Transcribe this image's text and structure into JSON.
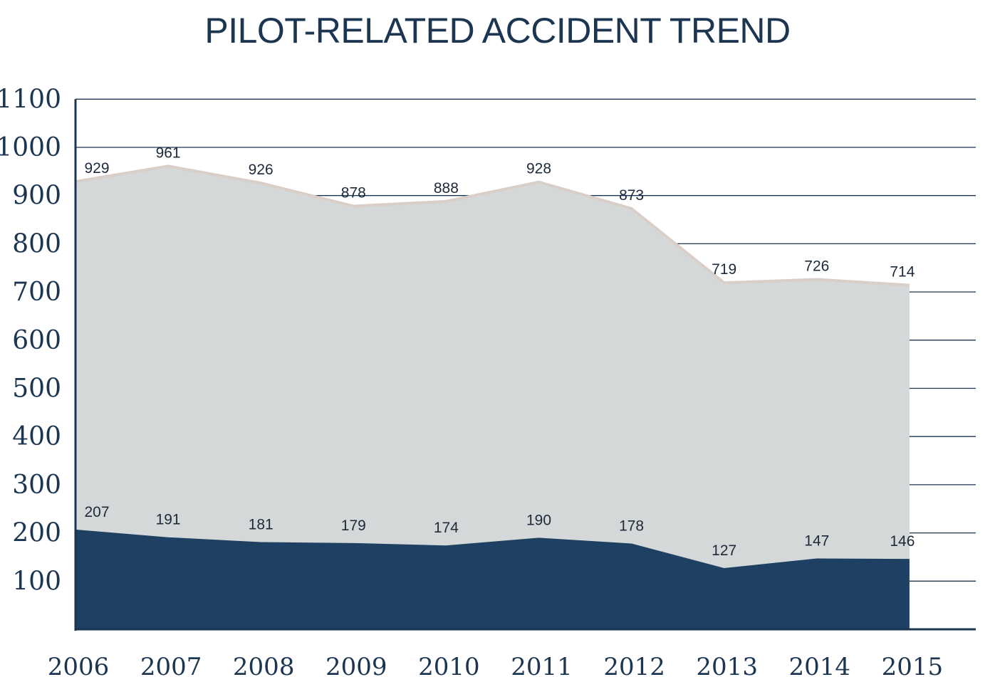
{
  "title": "PILOT-RELATED ACCIDENT TREND",
  "colors": {
    "title": "#1c3550",
    "grid": "#1c3550",
    "total_fill": "#d5d8d8",
    "total_line": "#d9cfc8",
    "fatal_fill": "#1e4062",
    "axis_text": "#1c3550",
    "label_text": "#1c2a3a"
  },
  "chart_data": {
    "type": "area",
    "title": "PILOT-RELATED ACCIDENT TREND",
    "xlabel": "",
    "ylabel": "",
    "ylim": [
      0,
      1100
    ],
    "grid": true,
    "yticks": [
      "100",
      "200",
      "300",
      "400",
      "500",
      "600",
      "700",
      "800",
      "900",
      "1000",
      "1100"
    ],
    "x": [
      "2006",
      "2007",
      "2008",
      "2009",
      "2010",
      "2011",
      "2012",
      "2013",
      "2014",
      "2015"
    ],
    "series": [
      {
        "key": "total",
        "values": [
          929,
          961,
          926,
          878,
          888,
          928,
          873,
          719,
          726,
          714
        ],
        "color": "#d5d8d8"
      },
      {
        "key": "fatal",
        "values": [
          207,
          191,
          181,
          179,
          174,
          190,
          178,
          127,
          147,
          146
        ],
        "color": "#1e4062"
      }
    ],
    "data_labels": {
      "total": [
        "929",
        "961",
        "926",
        "878",
        "888",
        "928",
        "873",
        "719",
        "726",
        "714"
      ],
      "fatal": [
        "207",
        "191",
        "181",
        "179",
        "174",
        "190",
        "178",
        "127",
        "147",
        "146"
      ]
    }
  }
}
